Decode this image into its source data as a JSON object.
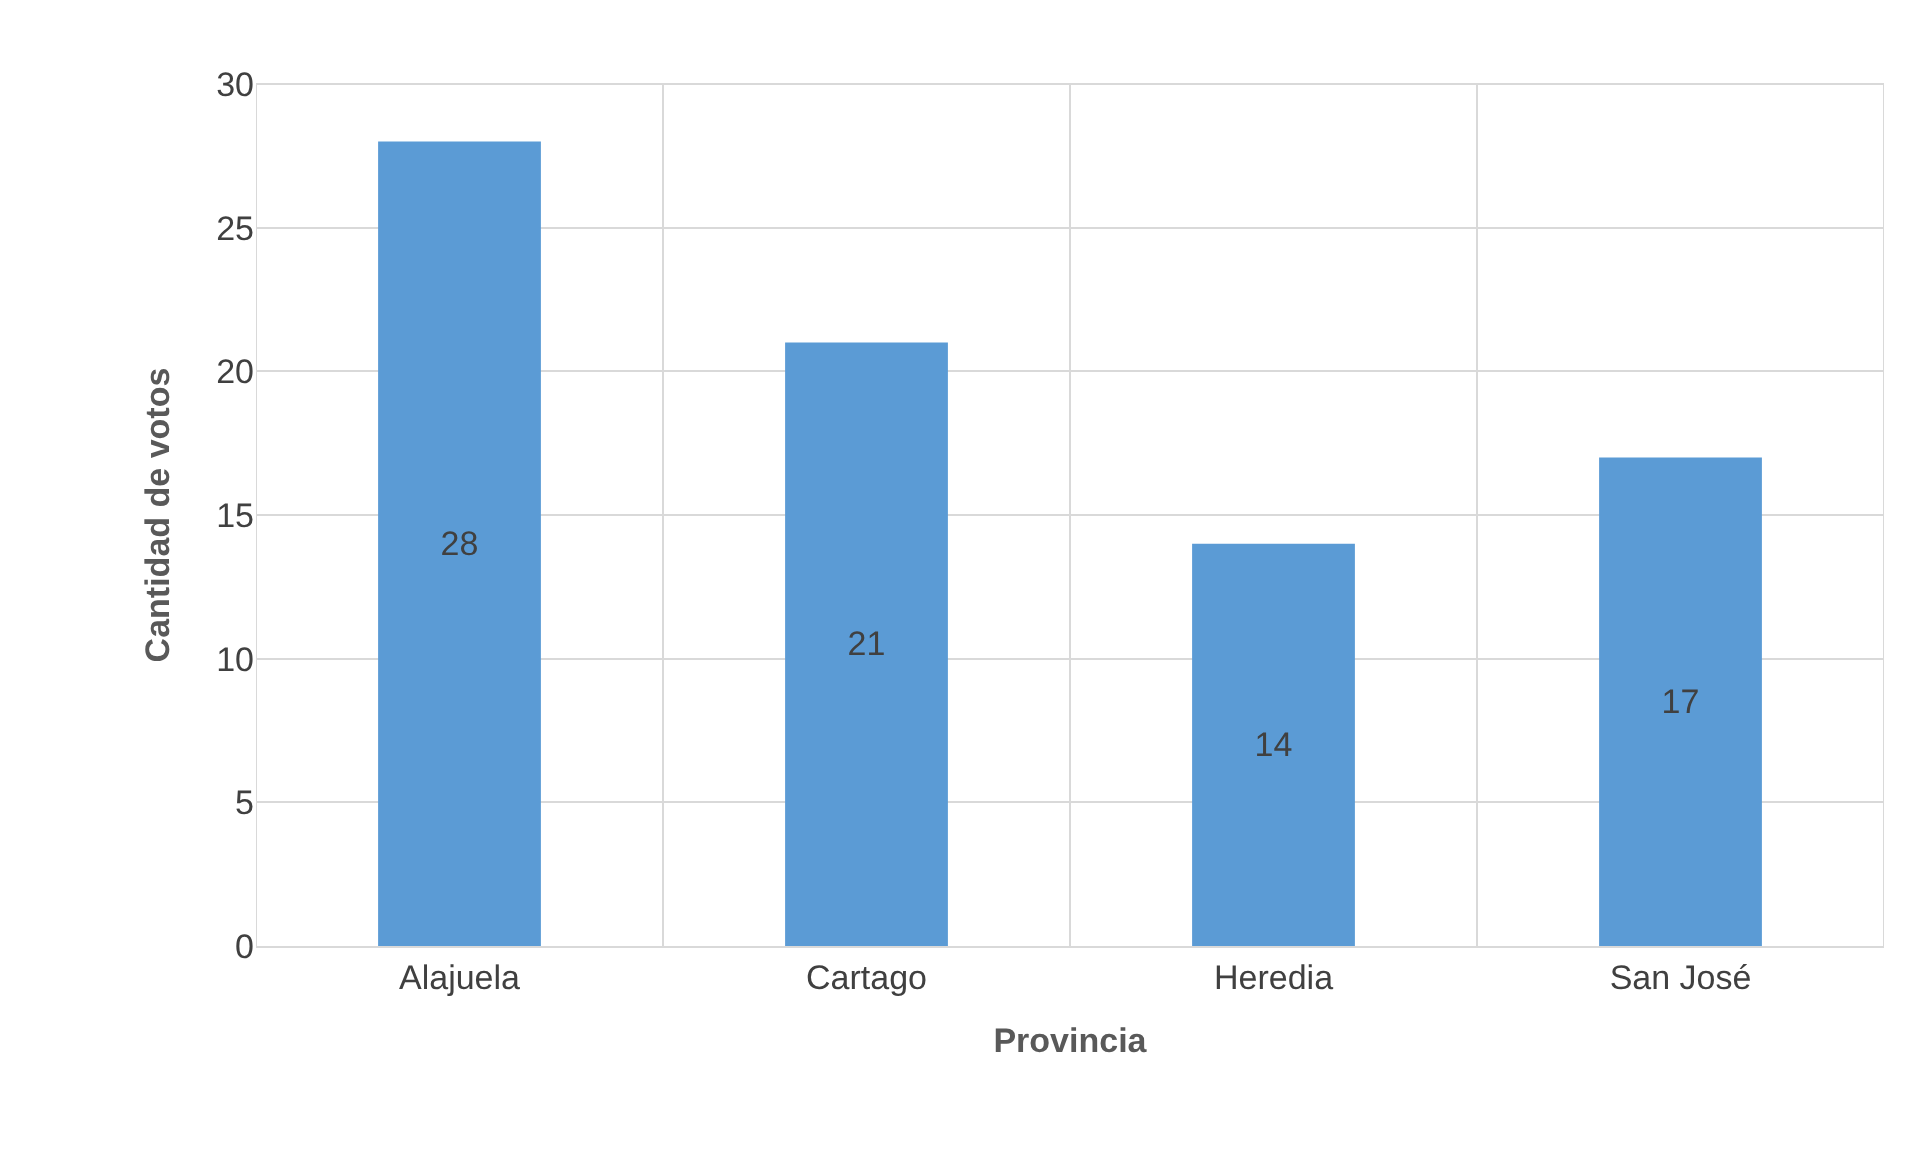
{
  "chart_data": {
    "type": "bar",
    "xlabel": "Provincia",
    "ylabel": "Cantidad de votos",
    "categories": [
      "Alajuela",
      "Cartago",
      "Heredia",
      "San José"
    ],
    "values": [
      28,
      21,
      14,
      17
    ],
    "color": "#5b9bd5",
    "ylim": [
      0,
      30
    ],
    "yticks": [
      0,
      5,
      10,
      15,
      20,
      25,
      30
    ],
    "grid": true,
    "data_labels": true
  }
}
